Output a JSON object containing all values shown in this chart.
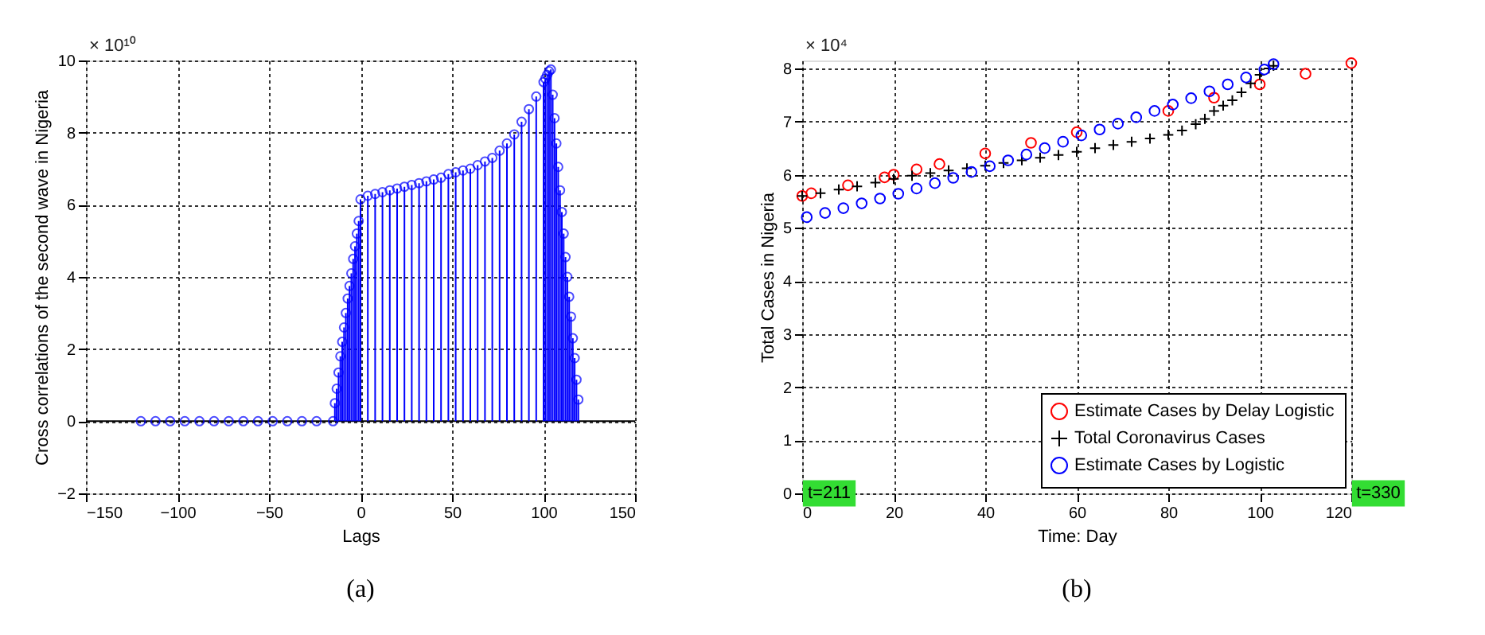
{
  "chart_data": [
    {
      "type": "lollipop",
      "xlabel": "Lags",
      "ylabel": "Cross correlations of the second wave in Nigeria",
      "xlim": [
        -150,
        150
      ],
      "ylim": [
        -2,
        10
      ],
      "xticks": [
        -150,
        -100,
        -50,
        0,
        50,
        100,
        150
      ],
      "yticks": [
        -2,
        0,
        2,
        4,
        6,
        8,
        10
      ],
      "grid": true,
      "marker": "circle",
      "annotations": [
        "× 10¹⁰",
        "(a)"
      ],
      "series": [
        {
          "color": "#0000ff",
          "x": [
            -120,
            -112,
            -104,
            -96,
            -88,
            -80,
            -72,
            -64,
            -56,
            -48,
            -40,
            -32,
            -24,
            -15,
            -14,
            -13,
            -12,
            -11,
            -10,
            -9,
            -8,
            -7,
            -6,
            -5,
            -4,
            -3,
            -2,
            -1,
            0,
            4,
            8,
            12,
            16,
            20,
            24,
            28,
            32,
            36,
            40,
            44,
            48,
            52,
            56,
            60,
            64,
            68,
            72,
            76,
            80,
            84,
            88,
            92,
            96,
            100,
            101,
            102,
            103,
            104,
            105,
            106,
            107,
            108,
            109,
            110,
            111,
            112,
            113,
            114,
            115,
            116,
            117,
            118,
            119
          ],
          "values": [
            0,
            0,
            0,
            0,
            0,
            0,
            0,
            0,
            0,
            0,
            0,
            0,
            0,
            0,
            0.5,
            0.9,
            1.35,
            1.8,
            2.2,
            2.6,
            3.0,
            3.4,
            3.75,
            4.1,
            4.5,
            4.85,
            5.2,
            5.55,
            6.15,
            6.25,
            6.3,
            6.35,
            6.4,
            6.45,
            6.5,
            6.55,
            6.6,
            6.65,
            6.7,
            6.75,
            6.85,
            6.9,
            6.95,
            7.0,
            7.1,
            7.2,
            7.3,
            7.5,
            7.7,
            7.95,
            8.3,
            8.65,
            9.0,
            9.4,
            9.5,
            9.6,
            9.7,
            9.75,
            9.05,
            8.4,
            7.7,
            7.05,
            6.4,
            5.8,
            5.2,
            4.55,
            4.0,
            3.45,
            2.9,
            2.3,
            1.75,
            1.15,
            0.6
          ]
        }
      ]
    },
    {
      "type": "scatter",
      "xlabel": "Time: Day",
      "ylabel": "Total Cases in Nigeria",
      "xlim": [
        0,
        120
      ],
      "ylim": [
        0,
        8.15
      ],
      "xticks": [
        0,
        20,
        40,
        60,
        80,
        100,
        120
      ],
      "yticks": [
        0,
        1,
        2,
        3,
        4,
        5,
        6,
        7,
        8
      ],
      "grid": true,
      "legend": "bottom right",
      "annotations": [
        "× 10⁴",
        "(b)",
        "t=211",
        "t=330"
      ],
      "series": [
        {
          "name": "Estimate Cases by Delay Logistic",
          "color": "#ff0000",
          "marker": "circle",
          "x": [
            0,
            2,
            10,
            18,
            20,
            25,
            30,
            40,
            50,
            60,
            80,
            90,
            100,
            110,
            120
          ],
          "values": [
            5.6,
            5.65,
            5.8,
            5.95,
            6.0,
            6.1,
            6.2,
            6.4,
            6.6,
            6.8,
            7.2,
            7.45,
            7.7,
            7.9,
            8.1
          ]
        },
        {
          "name": "Total Coronavirus Cases",
          "color": "#000000",
          "marker": "cross",
          "x": [
            0,
            4,
            8,
            12,
            16,
            20,
            24,
            28,
            32,
            36,
            40,
            44,
            48,
            52,
            56,
            60,
            64,
            68,
            72,
            76,
            80,
            83,
            86,
            88,
            90,
            92,
            94,
            96,
            98,
            100,
            102,
            103
          ],
          "values": [
            5.6,
            5.65,
            5.72,
            5.78,
            5.85,
            5.92,
            5.98,
            6.03,
            6.08,
            6.12,
            6.17,
            6.22,
            6.27,
            6.32,
            6.37,
            6.43,
            6.5,
            6.56,
            6.62,
            6.68,
            6.75,
            6.83,
            6.95,
            7.05,
            7.2,
            7.3,
            7.4,
            7.55,
            7.72,
            7.88,
            8.0,
            8.05
          ]
        },
        {
          "name": "Estimate Cases by Logistic",
          "color": "#0000ff",
          "marker": "circle",
          "x": [
            1,
            5,
            9,
            13,
            17,
            21,
            25,
            29,
            33,
            37,
            41,
            45,
            49,
            53,
            57,
            61,
            65,
            69,
            73,
            77,
            81,
            85,
            89,
            93,
            97,
            101,
            103
          ],
          "values": [
            5.2,
            5.28,
            5.37,
            5.46,
            5.55,
            5.64,
            5.74,
            5.84,
            5.94,
            6.05,
            6.16,
            6.27,
            6.38,
            6.5,
            6.62,
            6.74,
            6.85,
            6.96,
            7.08,
            7.2,
            7.32,
            7.44,
            7.57,
            7.7,
            7.83,
            7.98,
            8.08
          ]
        }
      ]
    }
  ]
}
